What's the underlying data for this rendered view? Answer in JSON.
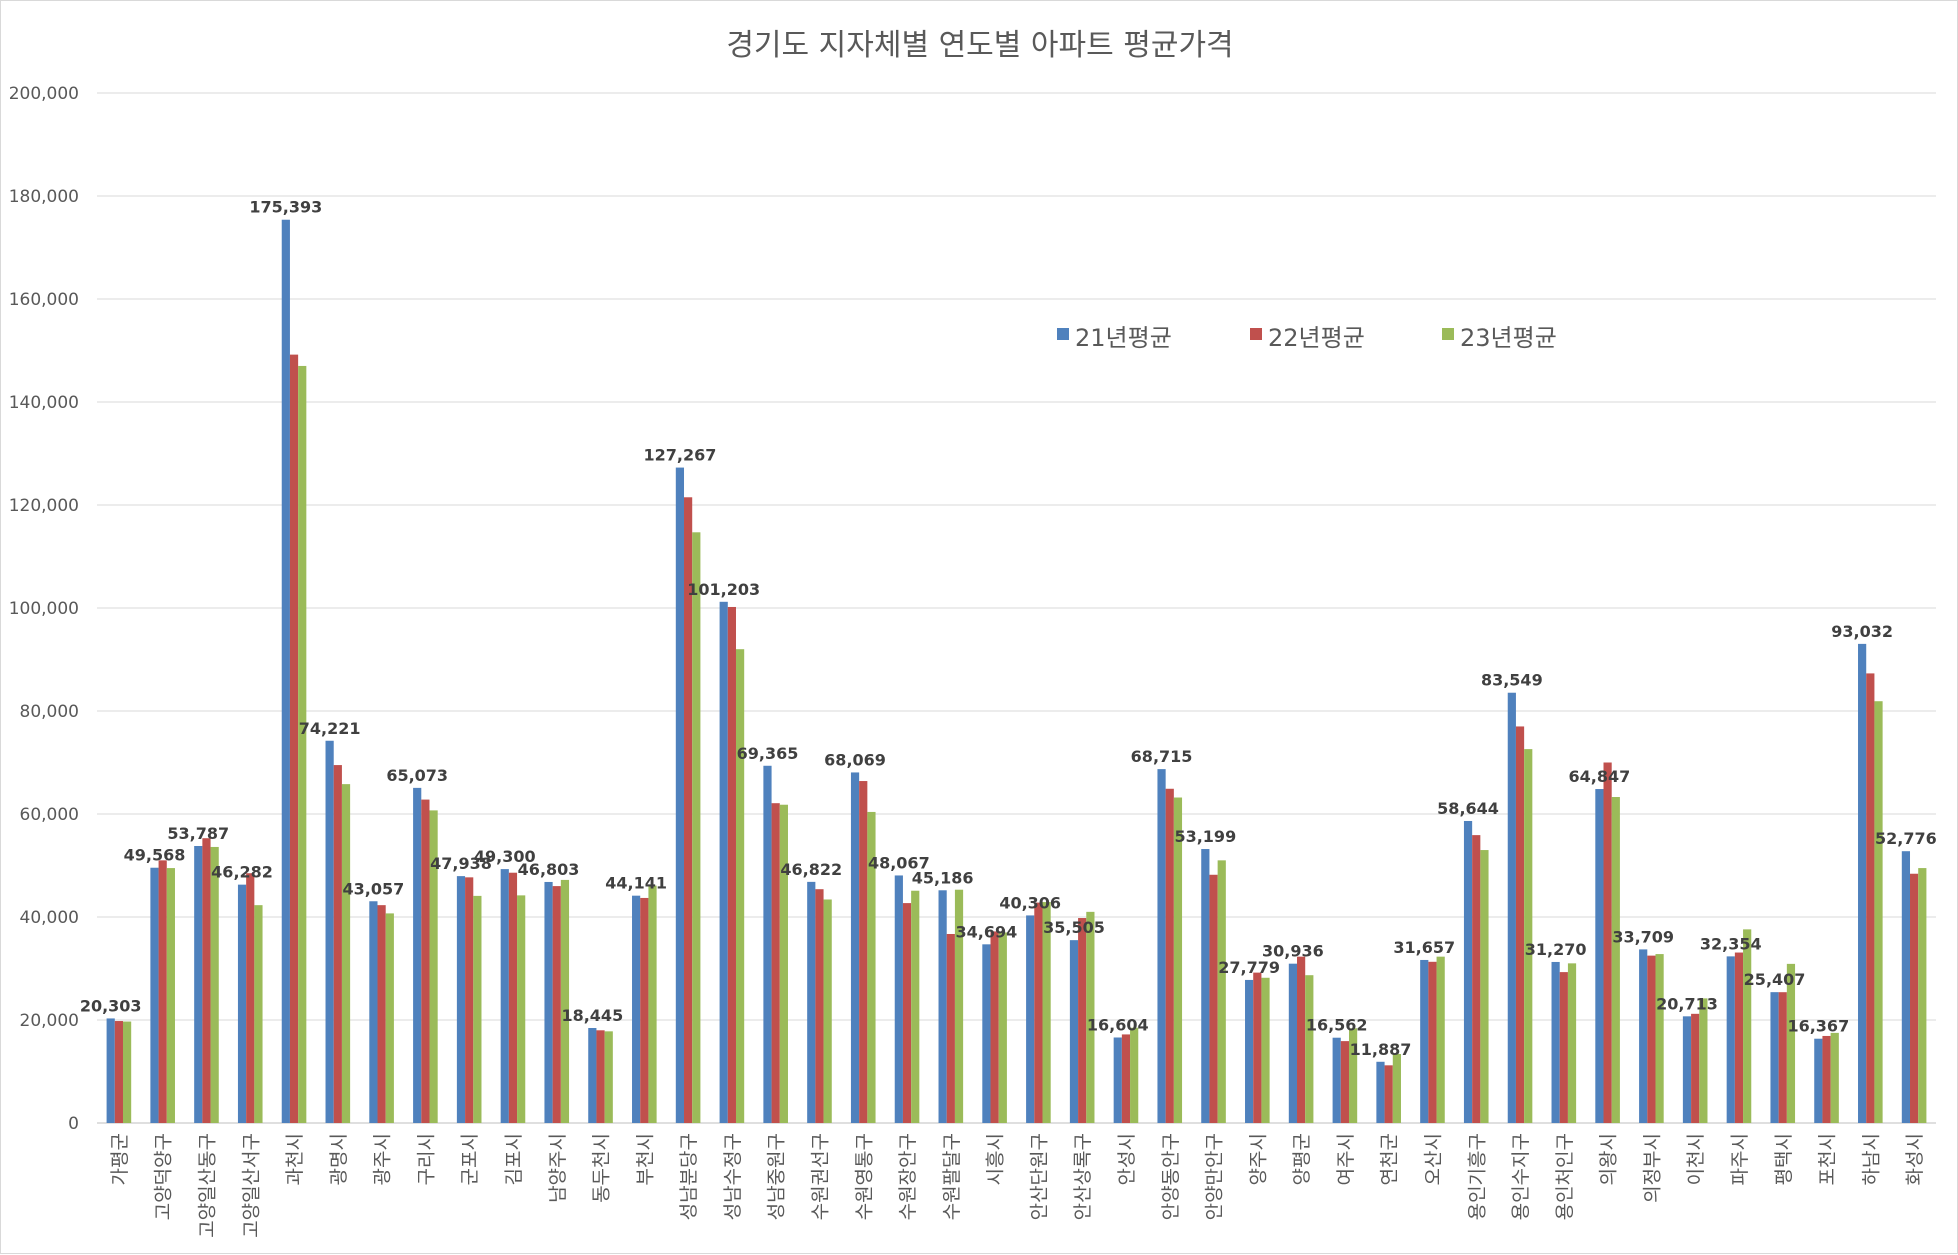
{
  "chart_data": {
    "type": "bar",
    "title": "경기도 지자체별 연도별 아파트 평균가격",
    "xlabel": "",
    "ylabel": "",
    "ylim": [
      0,
      200000
    ],
    "yticks": [
      "0",
      "20,000",
      "40,000",
      "60,000",
      "80,000",
      "100,000",
      "120,000",
      "140,000",
      "160,000",
      "180,000",
      "200,000"
    ],
    "grid": true,
    "legend_position": "upper-right",
    "categories": [
      "가평군",
      "고양덕양구",
      "고양일산동구",
      "고양일산서구",
      "과천시",
      "광명시",
      "광주시",
      "구리시",
      "군포시",
      "김포시",
      "남양주시",
      "동두천시",
      "부천시",
      "성남분당구",
      "성남수정구",
      "성남중원구",
      "수원권선구",
      "수원영통구",
      "수원장안구",
      "수원팔달구",
      "시흥시",
      "안산단원구",
      "안산상록구",
      "안성시",
      "안양동안구",
      "안양만안구",
      "양주시",
      "양평군",
      "여주시",
      "연천군",
      "오산시",
      "용인기흥구",
      "용인수지구",
      "용인처인구",
      "의왕시",
      "의정부시",
      "이천시",
      "파주시",
      "평택시",
      "포천시",
      "하남시",
      "화성시"
    ],
    "series": [
      {
        "name": "21년평균",
        "color": "#4f81bd",
        "values": [
          20303,
          49568,
          53787,
          46282,
          175393,
          74221,
          43057,
          65073,
          47938,
          49300,
          46803,
          18445,
          44141,
          127267,
          101203,
          69365,
          46822,
          68069,
          48067,
          45186,
          34694,
          40306,
          35505,
          16604,
          68715,
          53199,
          27779,
          30936,
          16562,
          11887,
          31657,
          58644,
          83549,
          31270,
          64847,
          33709,
          20713,
          32354,
          25407,
          16367,
          93032,
          52776
        ],
        "labels": [
          "20,303",
          "49,568",
          "53,787",
          "46,282",
          "175,393",
          "74,221",
          "43,057",
          "65,073",
          "47,938",
          "49,300",
          "46,803",
          "18,445",
          "44,141",
          "127,267",
          "101,203",
          "69,365",
          "46,822",
          "68,069",
          "48,067",
          "45,186",
          "34,694",
          "40,306",
          "35,505",
          "16,604",
          "68,715",
          "53,199",
          "27,779",
          "30,936",
          "16,562",
          "11,887",
          "31,657",
          "58,644",
          "83,549",
          "31,270",
          "64,847",
          "33,709",
          "20,713",
          "32,354",
          "25,407",
          "16,367",
          "93,032",
          "52,776"
        ]
      },
      {
        "name": "22년평균",
        "color": "#c0504d",
        "values": [
          19800,
          51000,
          55300,
          48500,
          149200,
          69500,
          42300,
          62800,
          47700,
          48600,
          46000,
          18000,
          43700,
          121500,
          100200,
          62100,
          45400,
          66400,
          42700,
          36700,
          37200,
          42800,
          39800,
          17200,
          64900,
          48200,
          29200,
          32300,
          15900,
          11200,
          31300,
          55900,
          77000,
          29300,
          70000,
          32500,
          21200,
          33100,
          25400,
          16900,
          87300,
          48400
        ],
        "labels": []
      },
      {
        "name": "23년평균",
        "color": "#9bbb59",
        "values": [
          19700,
          49500,
          53600,
          42300,
          147000,
          65800,
          40700,
          60700,
          44100,
          44200,
          47200,
          17800,
          46100,
          114700,
          92000,
          61800,
          43400,
          60400,
          45100,
          45300,
          37000,
          42900,
          41000,
          18500,
          63200,
          51000,
          28200,
          28700,
          18400,
          13400,
          32300,
          53000,
          72600,
          31000,
          63300,
          32800,
          24200,
          37600,
          30900,
          17500,
          81900,
          49500
        ],
        "labels": []
      }
    ]
  }
}
